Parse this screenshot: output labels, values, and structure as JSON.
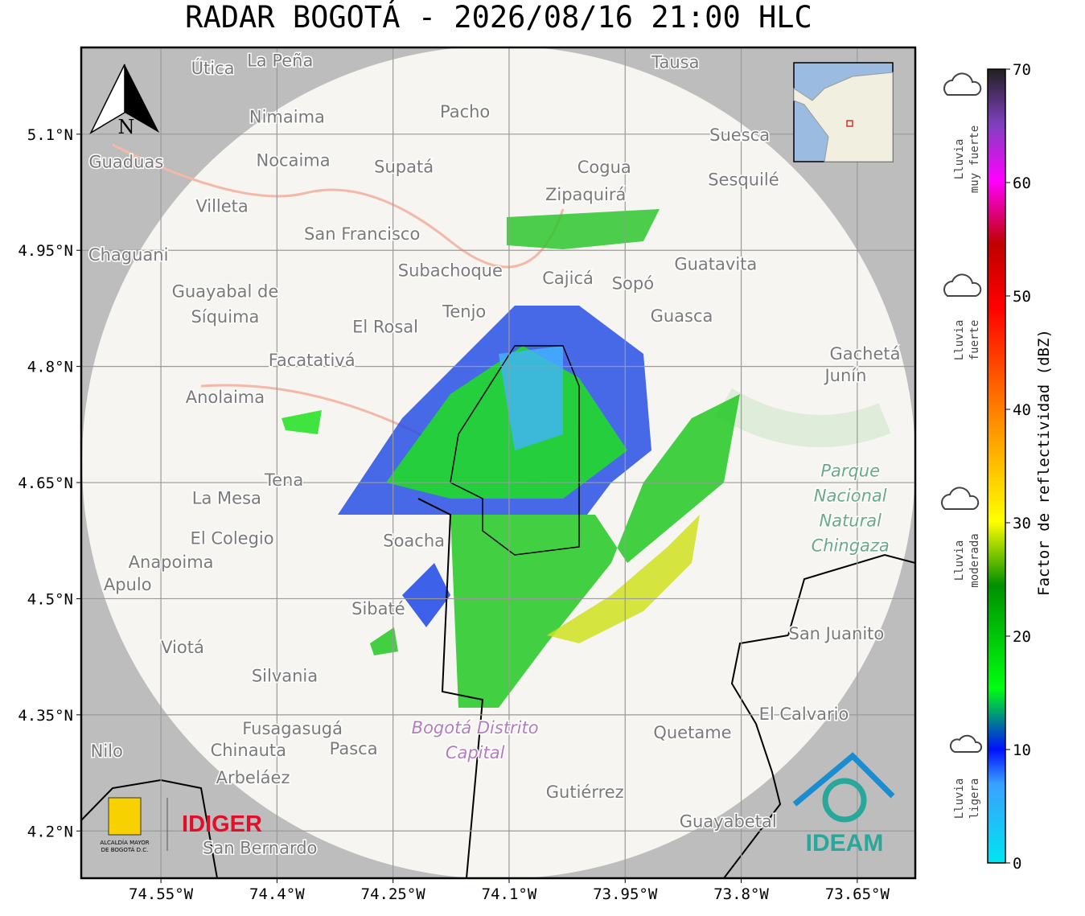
{
  "map": {
    "title": "RADAR BOGOTÁ - 2026/08/16 21:00 HLC",
    "xlim": [
      -74.653,
      -73.575
    ],
    "ylim": [
      4.139,
      5.212
    ],
    "xticks": [
      {
        "value": -74.55,
        "label": "74.55°W"
      },
      {
        "value": -74.4,
        "label": "74.4°W"
      },
      {
        "value": -74.25,
        "label": "74.25°W"
      },
      {
        "value": -74.1,
        "label": "74.1°W"
      },
      {
        "value": -73.95,
        "label": "73.95°W"
      },
      {
        "value": -73.8,
        "label": "73.8°W"
      },
      {
        "value": -73.65,
        "label": "73.65°W"
      }
    ],
    "yticks": [
      {
        "value": 5.1,
        "label": "5.1°N"
      },
      {
        "value": 4.95,
        "label": "4.95°N"
      },
      {
        "value": 4.8,
        "label": "4.8°N"
      },
      {
        "value": 4.65,
        "label": "4.65°N"
      },
      {
        "value": 4.5,
        "label": "4.5°N"
      },
      {
        "value": 4.35,
        "label": "4.35°N"
      },
      {
        "value": 4.2,
        "label": "4.2°N"
      }
    ],
    "grid": true,
    "north": "N",
    "places": [
      {
        "name": "Útica",
        "lon": -74.483,
        "lat": 5.185
      },
      {
        "name": "La Peña",
        "lon": -74.396,
        "lat": 5.195
      },
      {
        "name": "Tausa",
        "lon": -73.885,
        "lat": 5.193
      },
      {
        "name": "Pacho",
        "lon": -74.157,
        "lat": 5.129
      },
      {
        "name": "Nimaima",
        "lon": -74.387,
        "lat": 5.122
      },
      {
        "name": "Suesca",
        "lon": -73.802,
        "lat": 5.099
      },
      {
        "name": "Guaduas",
        "lon": -74.595,
        "lat": 5.064
      },
      {
        "name": "Nocaima",
        "lon": -74.379,
        "lat": 5.066
      },
      {
        "name": "Supatá",
        "lon": -74.236,
        "lat": 5.058
      },
      {
        "name": "Cogua",
        "lon": -73.977,
        "lat": 5.057
      },
      {
        "name": "Sesquilé",
        "lon": -73.797,
        "lat": 5.041
      },
      {
        "name": "Zipaquirá",
        "lon": -74.001,
        "lat": 5.022
      },
      {
        "name": "Villeta",
        "lon": -74.471,
        "lat": 5.007
      },
      {
        "name": "San Francisco",
        "lon": -74.29,
        "lat": 4.971
      },
      {
        "name": "Chaguani",
        "lon": -74.592,
        "lat": 4.944
      },
      {
        "name": "Guatavita",
        "lon": -73.833,
        "lat": 4.932
      },
      {
        "name": "Subachoque",
        "lon": -74.176,
        "lat": 4.924
      },
      {
        "name": "Cajicá",
        "lon": -74.024,
        "lat": 4.914
      },
      {
        "name": "Sopó",
        "lon": -73.94,
        "lat": 4.907
      },
      {
        "name": "Guayabal de",
        "lon": -74.467,
        "lat": 4.897
      },
      {
        "name": "Síquima",
        "lon": -74.467,
        "lat": 4.864
      },
      {
        "name": "Tenjo",
        "lon": -74.158,
        "lat": 4.871
      },
      {
        "name": "Guasca",
        "lon": -73.877,
        "lat": 4.865
      },
      {
        "name": "El Rosal",
        "lon": -74.26,
        "lat": 4.851
      },
      {
        "name": "Facatativá",
        "lon": -74.355,
        "lat": 4.808
      },
      {
        "name": "Gachetá",
        "lon": -73.64,
        "lat": 4.816
      },
      {
        "name": "Junín",
        "lon": -73.665,
        "lat": 4.788
      },
      {
        "name": "Anolaima",
        "lon": -74.467,
        "lat": 4.76
      },
      {
        "name": "Tena",
        "lon": -74.391,
        "lat": 4.653
      },
      {
        "name": "La Mesa",
        "lon": -74.465,
        "lat": 4.63
      },
      {
        "name": "El Colegio",
        "lon": -74.458,
        "lat": 4.578
      },
      {
        "name": "Soacha",
        "lon": -74.223,
        "lat": 4.575
      },
      {
        "name": "Anapoima",
        "lon": -74.537,
        "lat": 4.547
      },
      {
        "name": "Apulo",
        "lon": -74.593,
        "lat": 4.518
      },
      {
        "name": "Sibaté",
        "lon": -74.269,
        "lat": 4.487
      },
      {
        "name": "San Juanito",
        "lon": -73.677,
        "lat": 4.455
      },
      {
        "name": "Viotá",
        "lon": -74.522,
        "lat": 4.437
      },
      {
        "name": "Silvania",
        "lon": -74.39,
        "lat": 4.4
      },
      {
        "name": "El Calvario",
        "lon": -73.719,
        "lat": 4.351
      },
      {
        "name": "Fusagasugá",
        "lon": -74.38,
        "lat": 4.332
      },
      {
        "name": "Quetame",
        "lon": -73.863,
        "lat": 4.327
      },
      {
        "name": "Nilo",
        "lon": -74.62,
        "lat": 4.303
      },
      {
        "name": "Chinauta",
        "lon": -74.437,
        "lat": 4.304
      },
      {
        "name": "Pasca",
        "lon": -74.301,
        "lat": 4.306
      },
      {
        "name": "Arbeláez",
        "lon": -74.431,
        "lat": 4.269
      },
      {
        "name": "Gutiérrez",
        "lon": -74.002,
        "lat": 4.25
      },
      {
        "name": "Guayabetal",
        "lon": -73.817,
        "lat": 4.212
      },
      {
        "name": "San Bernardo",
        "lon": -74.422,
        "lat": 4.178
      }
    ],
    "areas": [
      {
        "lines": [
          "Parque",
          "Nacional",
          "Natural",
          "Chingaza"
        ],
        "lon": -73.659,
        "lat": 4.617
      },
      {
        "lines": [
          "Bogotá Distrito",
          "Capital"
        ],
        "lon": -74.144,
        "lat": 4.317
      }
    ],
    "logos": {
      "alcaldia": [
        "ALCALDÍA MAYOR",
        "DE BOGOTÁ D.C."
      ],
      "idiger": "IDIGER",
      "ideam": "IDEAM"
    },
    "colorbar": {
      "label": "Factor de reflectividad (dBZ)",
      "clim": [
        0,
        70
      ],
      "ticks": [
        0,
        10,
        20,
        30,
        40,
        50,
        60,
        70
      ]
    },
    "intensity": [
      {
        "lines": [
          "Lluvia",
          "muy fuerte"
        ]
      },
      {
        "lines": [
          "Lluvia",
          "fuerte"
        ]
      },
      {
        "lines": [
          "Lluvia",
          "moderada"
        ]
      },
      {
        "lines": [
          "Lluvia",
          "ligera"
        ]
      }
    ]
  }
}
